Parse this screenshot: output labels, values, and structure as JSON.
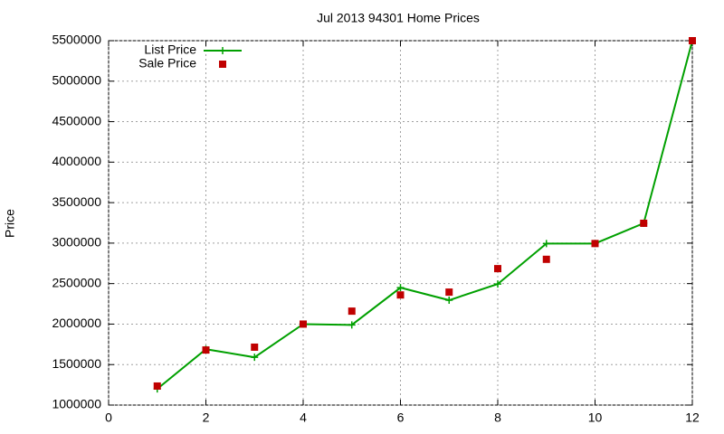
{
  "chart_data": {
    "type": "line",
    "title": "Jul 2013 94301 Home Prices",
    "y_label": "Price",
    "x": [
      1,
      2,
      3,
      4,
      5,
      6,
      7,
      8,
      9,
      10,
      11,
      12
    ],
    "series": [
      {
        "name": "List Price",
        "color": "#00a000",
        "style": "linespoints",
        "values": [
          1200000,
          1690000,
          1590000,
          2000000,
          1990000,
          2450000,
          2295000,
          2495000,
          2995000,
          2995000,
          3245000,
          5500000
        ]
      },
      {
        "name": "Sale Price",
        "color": "#c00000",
        "style": "points",
        "values": [
          1235000,
          1680000,
          1715000,
          2000000,
          2160000,
          2360000,
          2395000,
          2685000,
          2800000,
          2995000,
          3245000,
          5500000
        ]
      }
    ],
    "xlim": [
      0,
      12
    ],
    "xticks": [
      0,
      2,
      4,
      6,
      8,
      10,
      12
    ],
    "ylim": [
      1000000,
      5500000
    ],
    "yticks": [
      1000000,
      1500000,
      2000000,
      2500000,
      3000000,
      3500000,
      4000000,
      4500000,
      5000000,
      5500000
    ],
    "grid": true,
    "legend": "top-left"
  }
}
